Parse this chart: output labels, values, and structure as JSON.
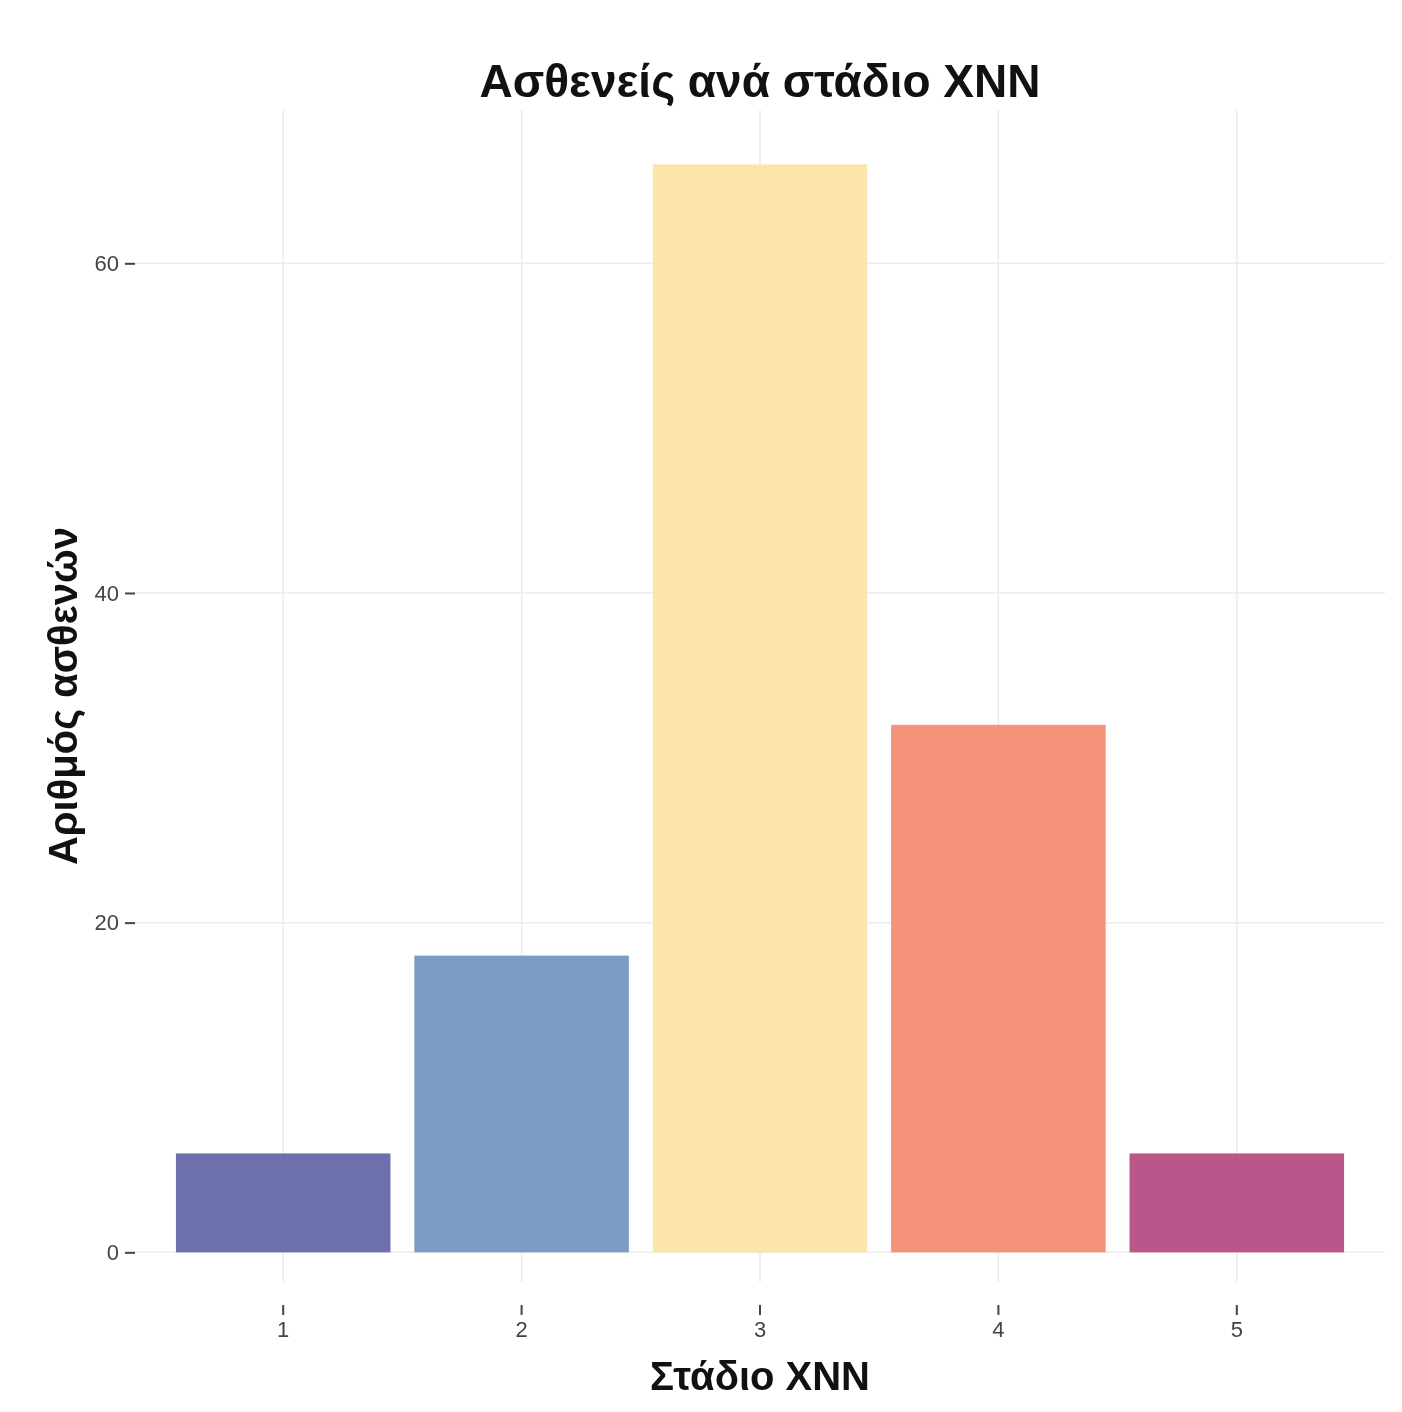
{
  "chart_data": {
    "type": "bar",
    "title": "Ασθενείς ανά στάδιο ΧΝΝ",
    "xlabel": "Στάδιο ΧΝΝ",
    "ylabel": "Αριθμός ασθενών",
    "categories": [
      "1",
      "2",
      "3",
      "4",
      "5"
    ],
    "values": [
      6,
      18,
      66,
      32,
      6
    ],
    "colors": [
      "#6e6fad",
      "#7b9cc7",
      "#fce5ab",
      "#f5937a",
      "#bb568a"
    ],
    "ylim": [
      -1.8,
      69.3
    ],
    "yticks": [
      0,
      20,
      40,
      60
    ],
    "grid": true
  }
}
